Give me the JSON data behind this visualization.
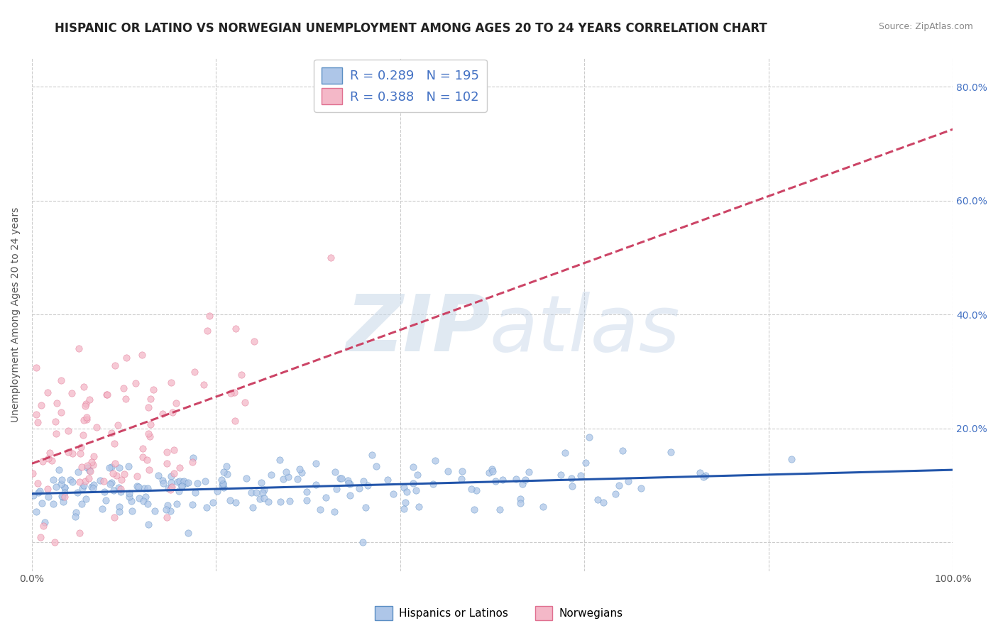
{
  "title": "HISPANIC OR LATINO VS NORWEGIAN UNEMPLOYMENT AMONG AGES 20 TO 24 YEARS CORRELATION CHART",
  "source": "Source: ZipAtlas.com",
  "ylabel": "Unemployment Among Ages 20 to 24 years",
  "xlim": [
    0,
    1
  ],
  "ylim": [
    -0.05,
    0.85
  ],
  "xticks": [
    0.0,
    0.2,
    0.4,
    0.6,
    0.8,
    1.0
  ],
  "xtick_labels": [
    "0.0%",
    "",
    "",
    "",
    "",
    "100.0%"
  ],
  "ytick_positions": [
    0.0,
    0.2,
    0.4,
    0.6,
    0.8
  ],
  "ytick_labels": [
    "",
    "20.0%",
    "40.0%",
    "60.0%",
    "80.0%"
  ],
  "series": [
    {
      "name": "Hispanics or Latinos",
      "R": 0.289,
      "N": 195,
      "dot_color": "#aec6e8",
      "edge_color": "#5b8ec4",
      "line_color": "#2255aa",
      "alpha": 0.75
    },
    {
      "name": "Norwegians",
      "R": 0.388,
      "N": 102,
      "dot_color": "#f4b8c8",
      "edge_color": "#e07090",
      "line_color": "#cc4466",
      "alpha": 0.75
    }
  ],
  "background_color": "#ffffff",
  "grid_color": "#cccccc",
  "title_fontsize": 12,
  "axis_label_fontsize": 10,
  "tick_fontsize": 10,
  "legend_text_color": "#4472c4"
}
